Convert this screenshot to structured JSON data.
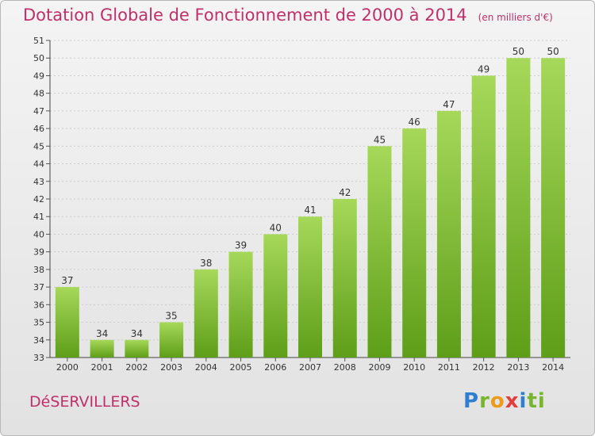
{
  "header": {
    "title": "Dotation Globale de Fonctionnement de 2000 à 2014",
    "subtitle": "(en milliers d'€)"
  },
  "footer": {
    "commune": "DéSERVILLERS",
    "logo_letters": [
      "P",
      "r",
      "o",
      "x",
      "i",
      "ti"
    ]
  },
  "colors": {
    "title": "#c0306a",
    "bar_top": "#a6d85a",
    "bar_bottom": "#5e9e18",
    "grid": "#cccccc"
  },
  "chart_data": {
    "type": "bar",
    "categories": [
      "2000",
      "2001",
      "2002",
      "2003",
      "2004",
      "2005",
      "2006",
      "2007",
      "2008",
      "2009",
      "2010",
      "2011",
      "2012",
      "2013",
      "2014"
    ],
    "values": [
      37,
      34,
      34,
      35,
      38,
      39,
      40,
      41,
      42,
      45,
      46,
      47,
      49,
      50,
      50
    ],
    "title": "Dotation Globale de Fonctionnement de 2000 à 2014",
    "subtitle": "(en milliers d'€)",
    "ylim": [
      33,
      51
    ],
    "yticks": [
      33,
      34,
      35,
      36,
      37,
      38,
      39,
      40,
      41,
      42,
      43,
      44,
      45,
      46,
      47,
      48,
      49,
      50,
      51
    ],
    "grid": true,
    "data_labels": true
  }
}
